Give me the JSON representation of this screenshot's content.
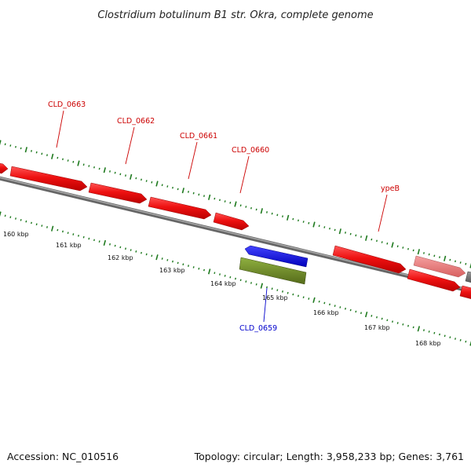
{
  "title": "Clostridium botulinum B1 str. Okra, complete genome",
  "footer": {
    "accession": "Accession: NC_010516",
    "stats": "Topology: circular; Length: 3,958,233 bp; Genes: 3,761"
  },
  "colors": {
    "forward_gene": "#ee1111",
    "forward_pseudo": "#ee7777",
    "reverse_gene": "#1111dd",
    "rna_gene": "#6b8e23",
    "axis": "#888888",
    "tick": "#1f7a1f",
    "label_forward": "#cc0000",
    "label_reverse": "#0000cc"
  },
  "gene_labels": [
    {
      "text": "CLD_0663",
      "strand": "forward"
    },
    {
      "text": "CLD_0662",
      "strand": "forward"
    },
    {
      "text": "CLD_0661",
      "strand": "forward"
    },
    {
      "text": "CLD_0660",
      "strand": "forward"
    },
    {
      "text": "ypeB",
      "strand": "forward"
    },
    {
      "text": "CLD_0659",
      "strand": "reverse"
    }
  ],
  "kbp_ticks": [
    "160 kbp",
    "161 kbp",
    "162 kbp",
    "163 kbp",
    "164 kbp",
    "165 kbp",
    "166 kbp",
    "167 kbp",
    "168 kbp"
  ]
}
